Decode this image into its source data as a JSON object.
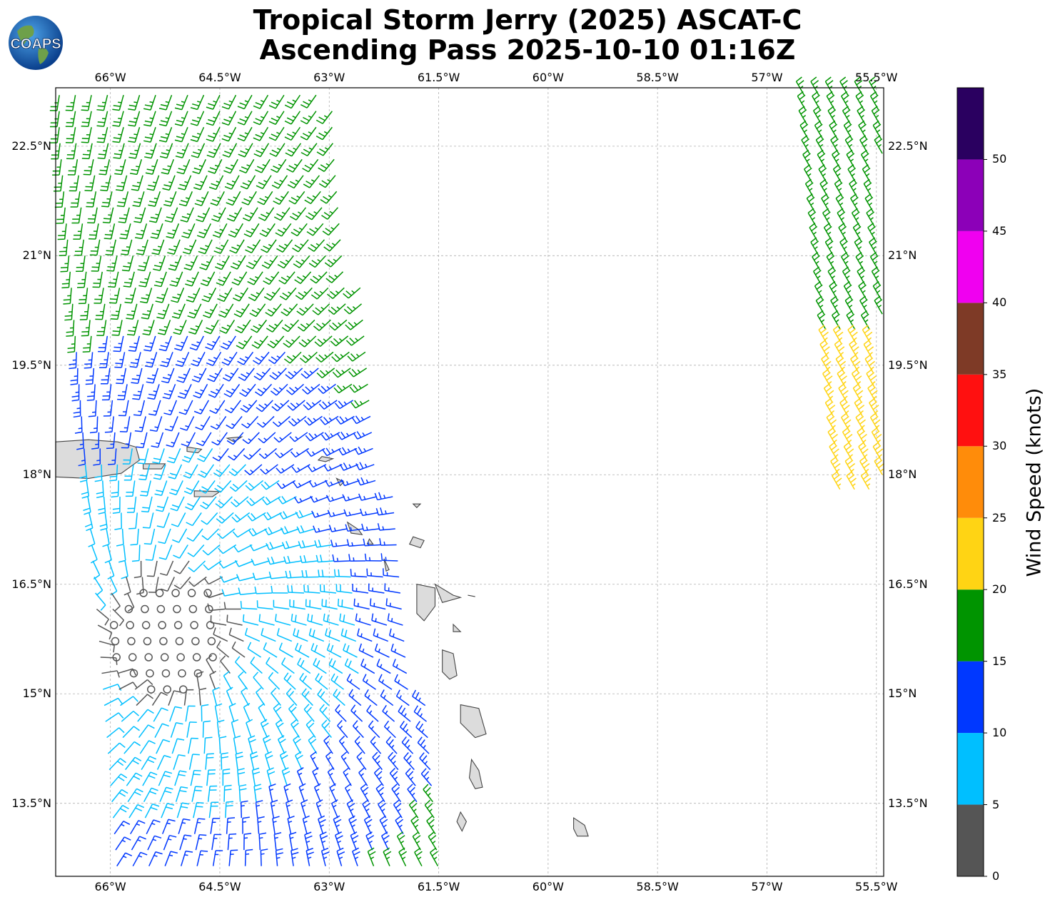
{
  "header": {
    "title_line1": "Tropical Storm Jerry (2025) ASCAT-C",
    "title_line2": "Ascending Pass 2025-10-10 01:16Z",
    "logo_text": "COAPS"
  },
  "map": {
    "extent": {
      "lon_min": -66.75,
      "lon_max": -55.4,
      "lat_min": 12.5,
      "lat_max": 23.3
    },
    "lon_ticks": [
      {
        "value": -66.0,
        "label": "66°W"
      },
      {
        "value": -64.5,
        "label": "64.5°W"
      },
      {
        "value": -63.0,
        "label": "63°W"
      },
      {
        "value": -61.5,
        "label": "61.5°W"
      },
      {
        "value": -60.0,
        "label": "60°W"
      },
      {
        "value": -58.5,
        "label": "58.5°W"
      },
      {
        "value": -57.0,
        "label": "57°W"
      },
      {
        "value": -55.5,
        "label": "55.5°W"
      }
    ],
    "lat_ticks": [
      {
        "value": 22.5,
        "label": "22.5°N"
      },
      {
        "value": 21.0,
        "label": "21°N"
      },
      {
        "value": 19.5,
        "label": "19.5°N"
      },
      {
        "value": 18.0,
        "label": "18°N"
      },
      {
        "value": 16.5,
        "label": "16.5°N"
      },
      {
        "value": 15.0,
        "label": "15°N"
      },
      {
        "value": 13.5,
        "label": "13.5°N"
      }
    ],
    "grid": true,
    "land_color": "#dcdcdc",
    "coast_color": "#444444"
  },
  "colorbar": {
    "title": "Wind Speed (knots)",
    "ticks": [
      "0",
      "5",
      "10",
      "15",
      "20",
      "25",
      "30",
      "35",
      "40",
      "45",
      "50"
    ],
    "bins": [
      {
        "min": 0,
        "max": 5,
        "color": "#555555"
      },
      {
        "min": 5,
        "max": 10,
        "color": "#00bfff"
      },
      {
        "min": 10,
        "max": 15,
        "color": "#0038ff"
      },
      {
        "min": 15,
        "max": 20,
        "color": "#009400"
      },
      {
        "min": 20,
        "max": 25,
        "color": "#ffd414"
      },
      {
        "min": 25,
        "max": 30,
        "color": "#ff8c0a"
      },
      {
        "min": 30,
        "max": 35,
        "color": "#ff1010"
      },
      {
        "min": 35,
        "max": 40,
        "color": "#7e3a26"
      },
      {
        "min": 40,
        "max": 45,
        "color": "#f000f0"
      },
      {
        "min": 45,
        "max": 50,
        "color": "#8c00b8"
      },
      {
        "min": 50,
        "max": 55,
        "color": "#2a0060"
      }
    ]
  },
  "chart_data": {
    "type": "scatter",
    "description_units": "lon (deg E), lat (deg N), wind speed (knots), direction from (deg)",
    "swaths": [
      {
        "lon_min_north": -66.75,
        "lon_max_north": -63.0,
        "lat_north": 23.3,
        "lon_min_south": -65.9,
        "lon_max_south": -61.3,
        "lat_south": 12.5
      },
      {
        "lon_min_north": -56.5,
        "lon_max_north": -55.4,
        "lat_north": 23.3,
        "lon_min_south": -56.0,
        "lon_max_south": -55.4,
        "lat_south": 17.8
      }
    ],
    "storm_center_approx": {
      "lon": -65.2,
      "lat": 15.8,
      "speed": 0
    },
    "wind_regimes": [
      {
        "region": "center",
        "lon": -65.2,
        "lat": 15.8,
        "speed_range": [
          0,
          5
        ]
      },
      {
        "region": "north",
        "lon": -64.5,
        "lat": 21.5,
        "speed_range": [
          5,
          15
        ]
      },
      {
        "region": "northeast edge",
        "lon": -63.4,
        "lat": 22.0,
        "speed_range": [
          15,
          20
        ]
      },
      {
        "region": "east",
        "lon": -62.5,
        "lat": 16.5,
        "speed_range": [
          10,
          15
        ]
      },
      {
        "region": "southeast edge",
        "lon": -61.4,
        "lat": 12.7,
        "speed_range": [
          15,
          20
        ]
      },
      {
        "region": "far east swath north",
        "lon": -55.8,
        "lat": 21.8,
        "speed_range": [
          15,
          20
        ]
      },
      {
        "region": "far east swath south",
        "lon": -55.7,
        "lat": 19.0,
        "speed_range": [
          20,
          25
        ]
      }
    ]
  }
}
